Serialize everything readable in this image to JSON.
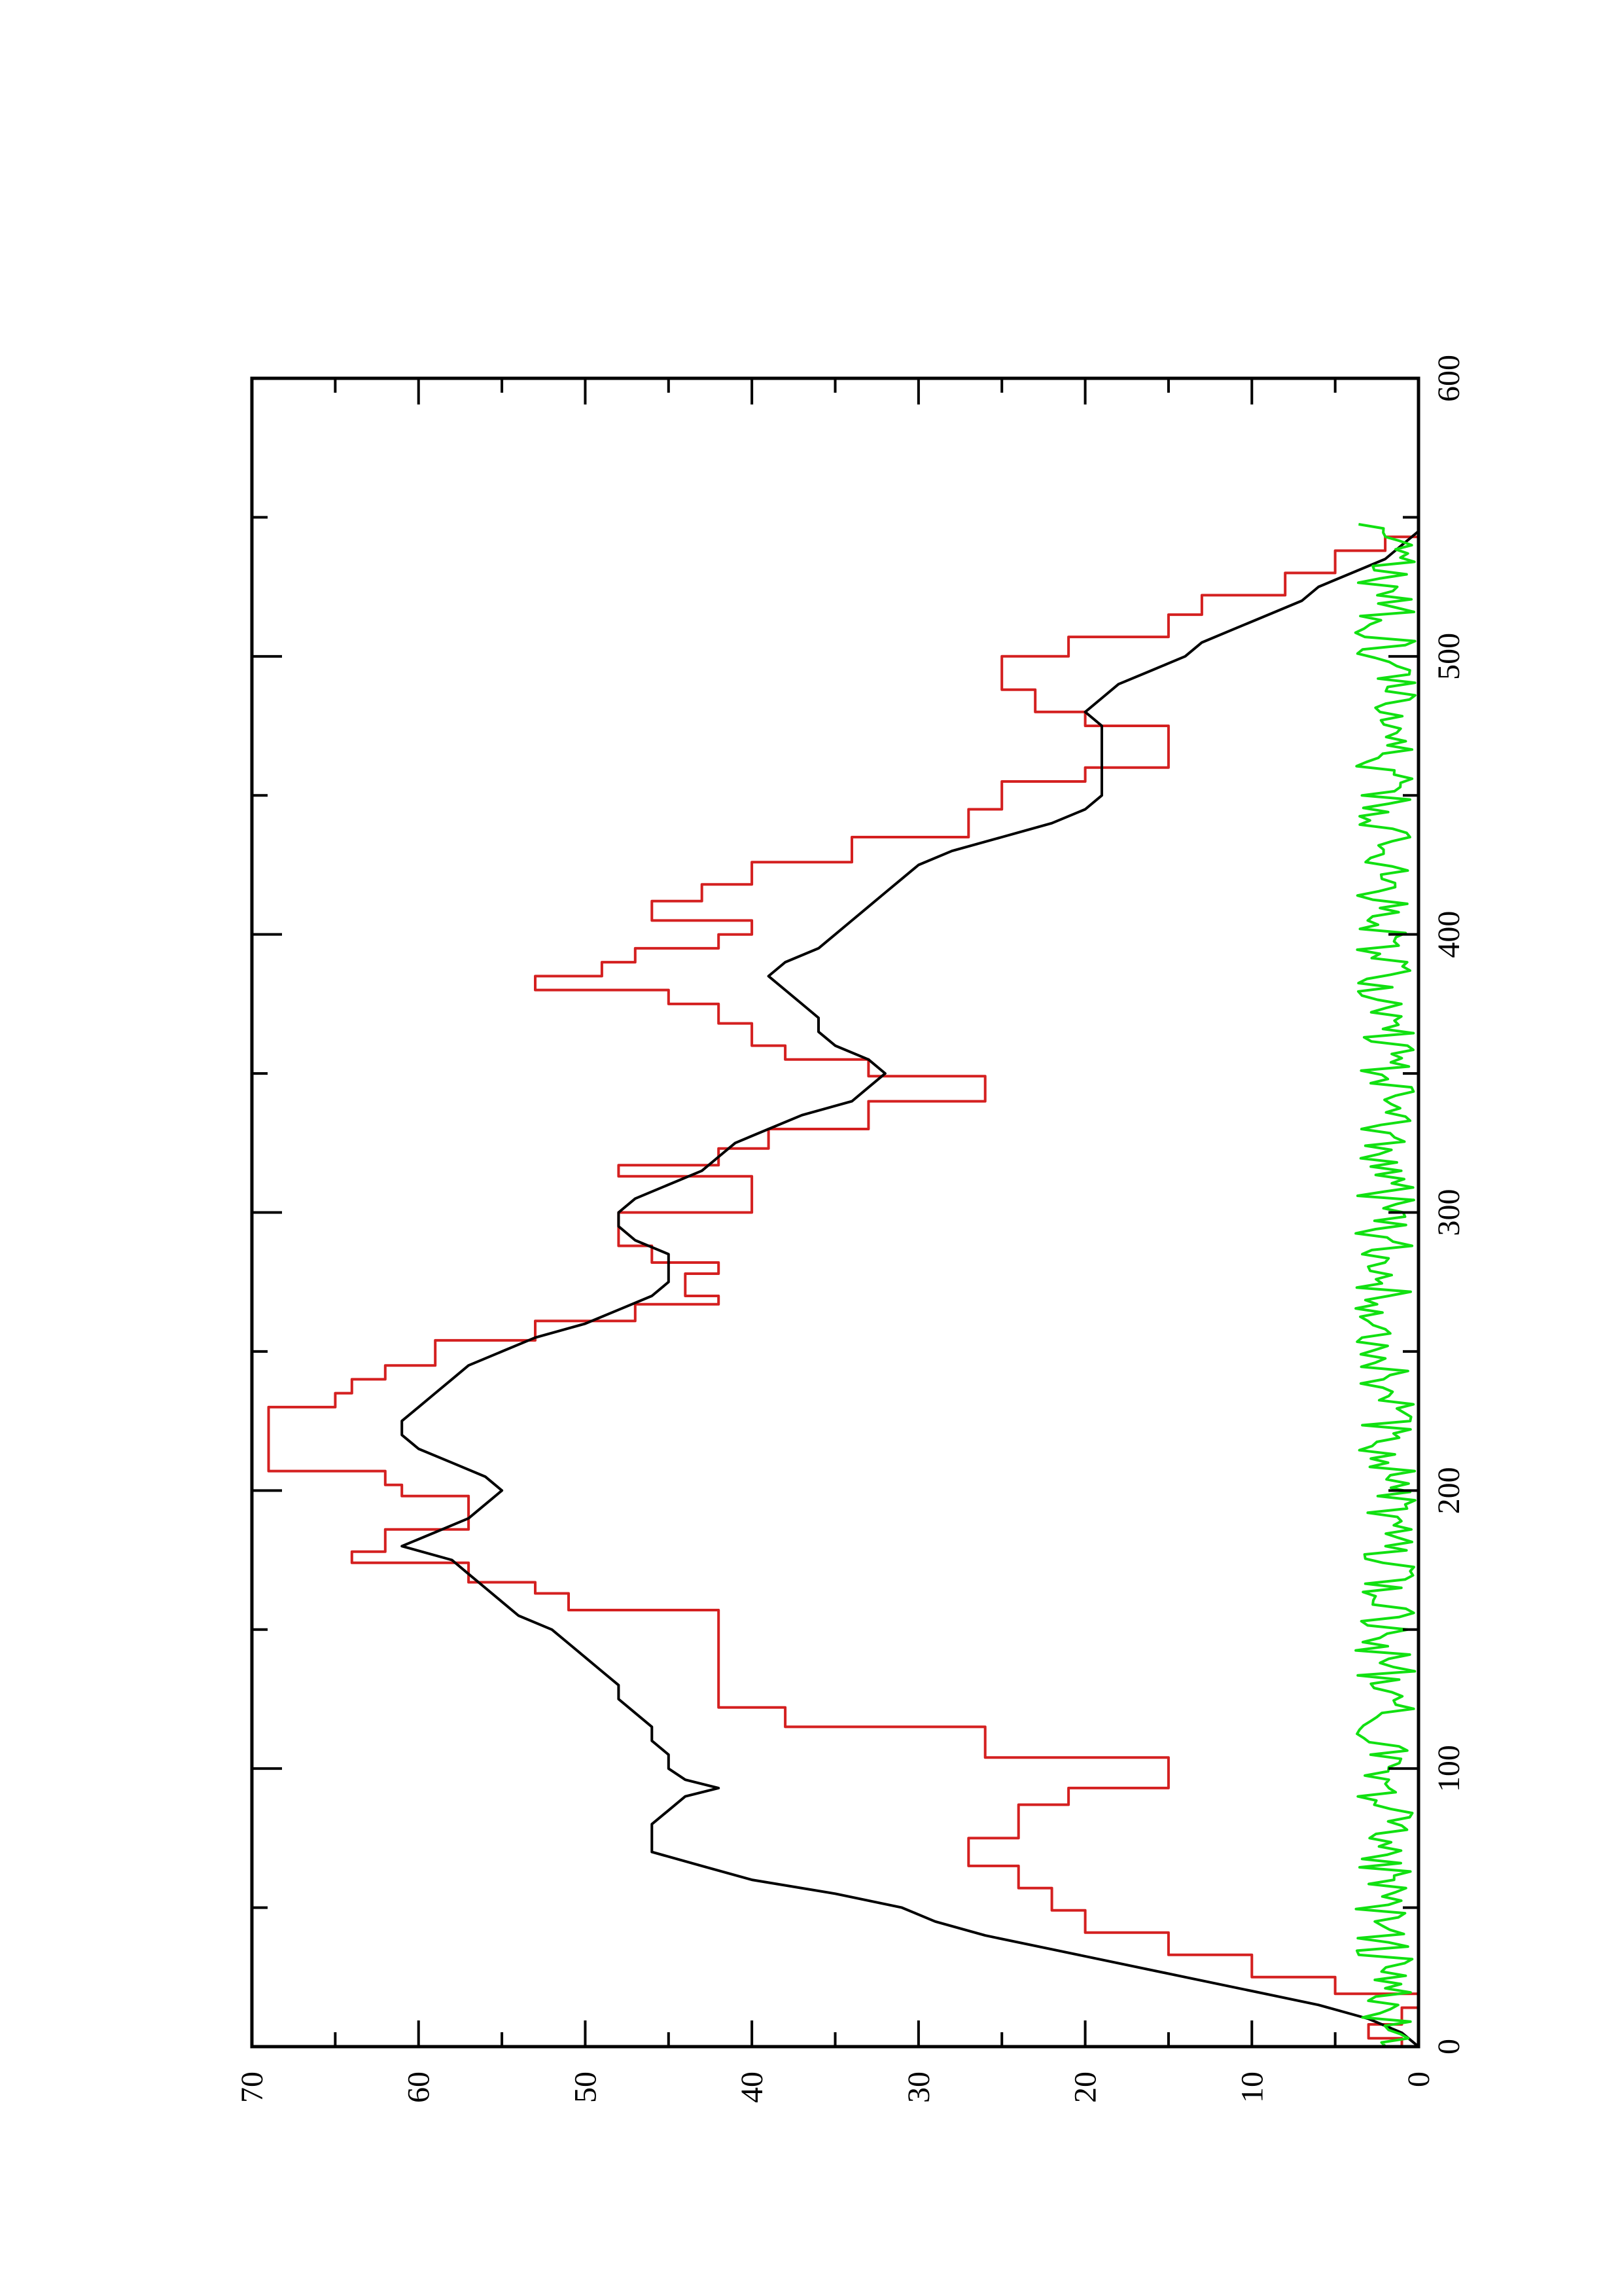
{
  "chart_data": {
    "type": "line",
    "title": "",
    "xlabel": "",
    "ylabel": "",
    "xlim": [
      0,
      600
    ],
    "ylim": [
      0,
      70
    ],
    "x_ticks": [
      "0",
      "100",
      "200",
      "300",
      "400",
      "500",
      "600"
    ],
    "y_ticks": [
      "0",
      "10",
      "20",
      "30",
      "40",
      "50",
      "60",
      "70"
    ],
    "grid": false,
    "legend": "none",
    "orientation": "rotated-90-ccw",
    "series": [
      {
        "color": "#d42020",
        "step": true,
        "x": [
          0,
          3,
          8,
          14,
          19,
          25,
          33,
          41,
          49,
          57,
          65,
          70,
          75,
          80,
          87,
          93,
          104,
          115,
          122,
          128,
          150,
          157,
          163,
          167,
          174,
          178,
          186,
          192,
          198,
          202,
          207,
          220,
          225,
          230,
          235,
          240,
          245,
          254,
          261,
          267,
          270,
          274,
          278,
          282,
          288,
          293,
          300,
          307,
          313,
          317,
          323,
          330,
          335,
          340,
          349,
          355,
          360,
          368,
          375,
          380,
          385,
          390,
          395,
          400,
          405,
          412,
          418,
          426,
          435,
          445,
          455,
          460,
          470,
          475,
          480,
          488,
          493,
          500,
          507,
          515,
          522,
          530,
          538,
          543,
          548
        ],
        "y": [
          1,
          3,
          1,
          0,
          5,
          10,
          15,
          20,
          22,
          24,
          27,
          27,
          24,
          24,
          21,
          15,
          26,
          38,
          42,
          42,
          42,
          51,
          53,
          57,
          64,
          62,
          57,
          57,
          61,
          62,
          69,
          69,
          69,
          65,
          64,
          62,
          59,
          53,
          47,
          42,
          44,
          44,
          42,
          46,
          48,
          48,
          40,
          40,
          48,
          42,
          39,
          33,
          33,
          26,
          33,
          38,
          40,
          42,
          45,
          53,
          49,
          47,
          42,
          40,
          46,
          43,
          40,
          34,
          27,
          25,
          20,
          15,
          15,
          20,
          23,
          25,
          25,
          21,
          15,
          13,
          8,
          5,
          2,
          0,
          0
        ]
      },
      {
        "color": "#000000",
        "step": false,
        "x": [
          0,
          5,
          10,
          15,
          20,
          25,
          30,
          35,
          40,
          45,
          50,
          55,
          60,
          65,
          70,
          75,
          80,
          85,
          90,
          93,
          96,
          100,
          105,
          110,
          115,
          120,
          125,
          130,
          135,
          140,
          145,
          150,
          155,
          160,
          165,
          170,
          175,
          180,
          185,
          190,
          195,
          200,
          205,
          210,
          215,
          220,
          225,
          230,
          235,
          240,
          245,
          250,
          255,
          260,
          265,
          270,
          275,
          280,
          285,
          290,
          295,
          300,
          305,
          310,
          315,
          320,
          325,
          330,
          335,
          340,
          345,
          350,
          355,
          360,
          365,
          370,
          375,
          380,
          385,
          390,
          395,
          400,
          405,
          410,
          415,
          420,
          425,
          430,
          435,
          440,
          445,
          450,
          455,
          460,
          465,
          470,
          475,
          480,
          485,
          490,
          495,
          500,
          505,
          510,
          515,
          520,
          525,
          530,
          535,
          540,
          545,
          548
        ],
        "y": [
          0,
          1,
          3,
          6,
          10,
          14,
          18,
          22,
          26,
          29,
          31,
          35,
          40,
          43,
          46,
          46,
          46,
          45,
          44,
          42,
          44,
          45,
          45,
          46,
          46,
          47,
          48,
          48,
          49,
          50,
          51,
          52,
          54,
          55,
          56,
          57,
          58,
          61,
          59,
          57,
          56,
          55,
          56,
          58,
          60,
          61,
          61,
          60,
          59,
          58,
          57,
          55,
          53,
          50,
          48,
          46,
          45,
          45,
          45,
          47,
          48,
          48,
          47,
          45,
          43,
          42,
          41,
          39,
          37,
          34,
          33,
          32,
          33,
          35,
          36,
          36,
          37,
          38,
          39,
          38,
          36,
          35,
          34,
          33,
          32,
          31,
          30,
          28,
          25,
          22,
          20,
          19,
          19,
          19,
          19,
          19,
          19,
          20,
          19,
          18,
          16,
          14,
          13,
          11,
          9,
          7,
          6,
          4,
          2,
          1,
          0,
          0
        ]
      },
      {
        "color": "#11e011",
        "step": false,
        "noise": true,
        "baseline": 2,
        "x_range": [
          0,
          548
        ]
      }
    ]
  }
}
